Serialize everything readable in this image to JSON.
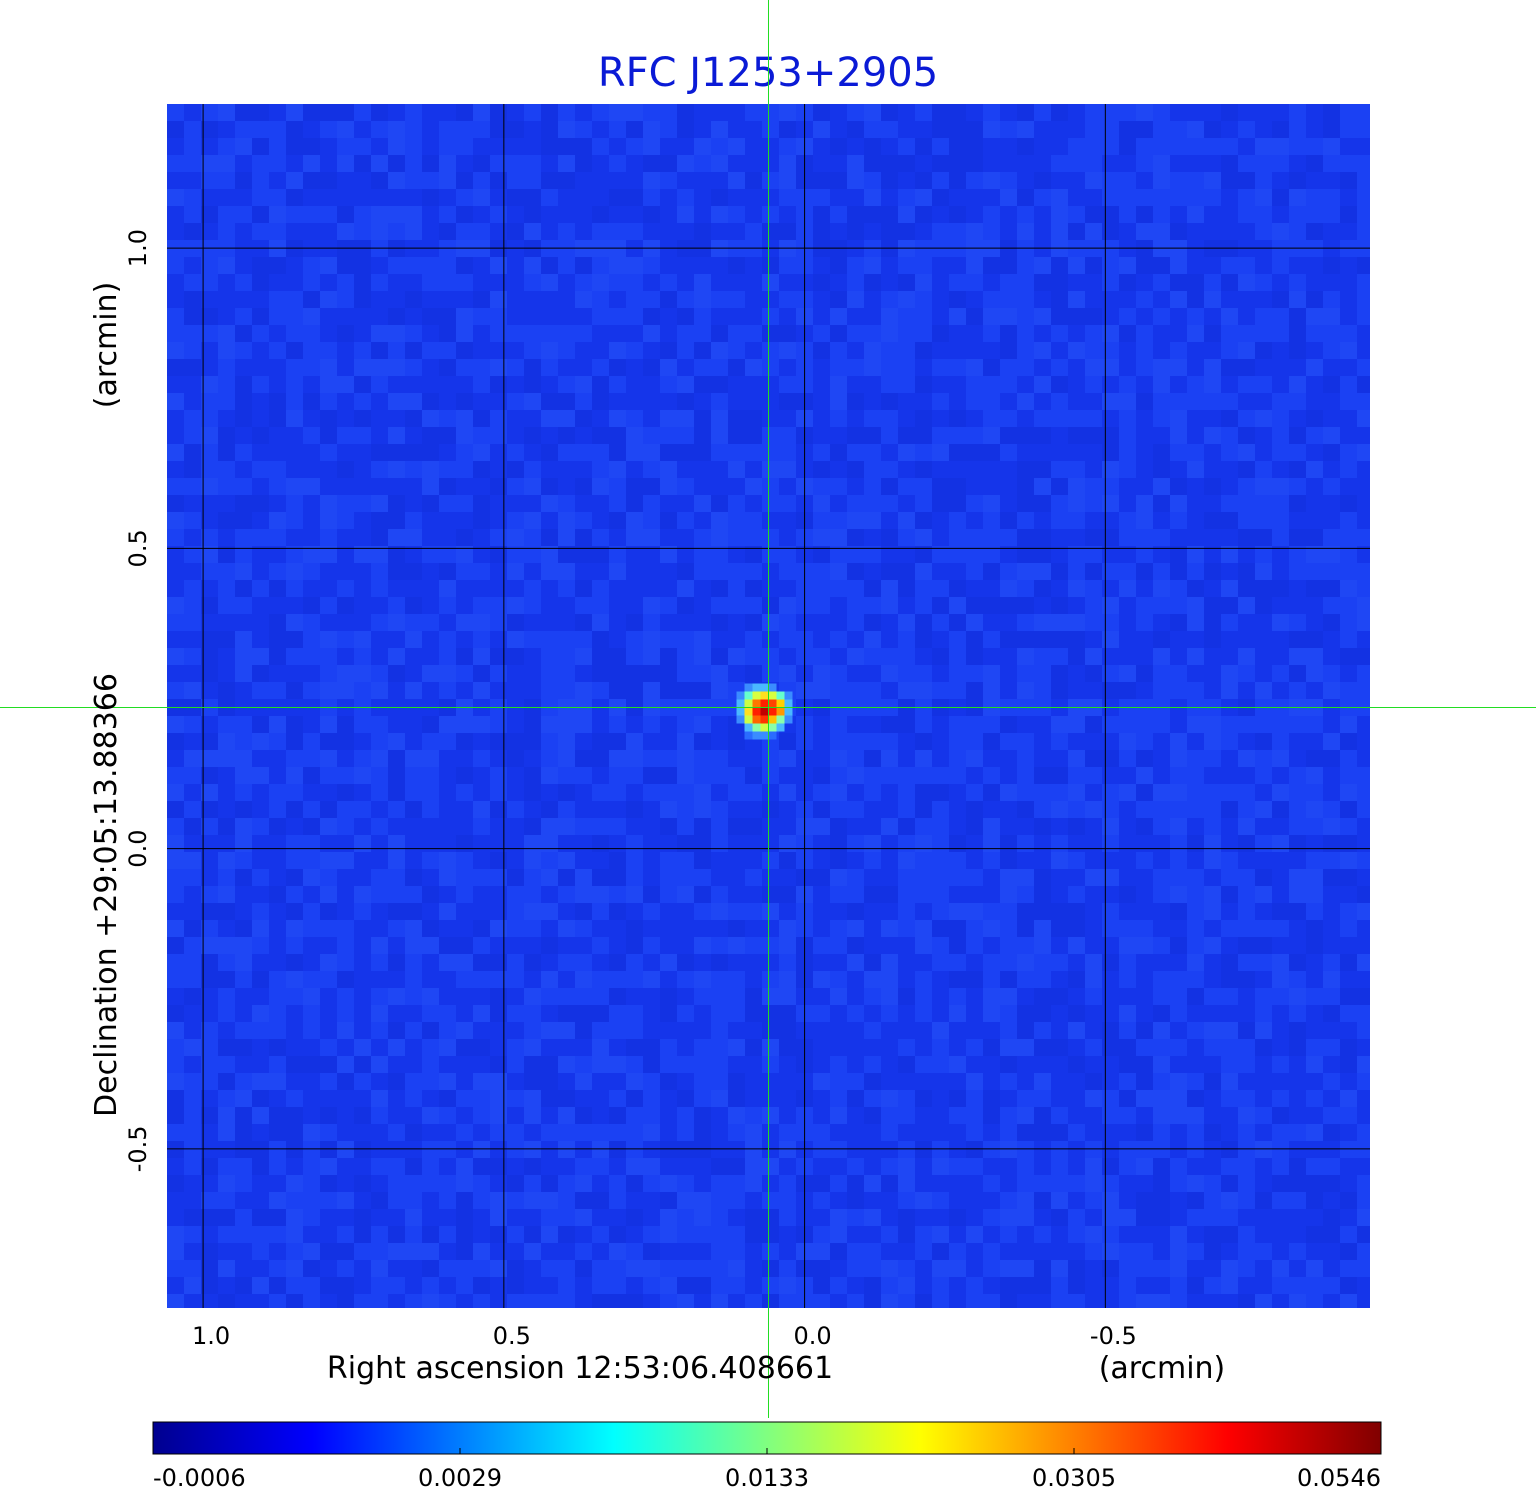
{
  "chart_data": {
    "type": "heatmap",
    "title": "RFC J1253+2905",
    "xlabel": "Right ascension  12:53:06.408661",
    "xunit": "(arcmin)",
    "ylabel": "Declination  +29:05:13.88366",
    "yunit": "(arcmin)",
    "x_ticks": [
      1.0,
      0.5,
      0.0,
      -0.5
    ],
    "x_tick_labels": [
      "1.0",
      "0.5",
      "0.0",
      "-0.5"
    ],
    "y_ticks": [
      1.0,
      0.5,
      0.0,
      -0.5
    ],
    "y_tick_labels": [
      "1.0",
      "0.5",
      "0.0",
      "-0.5"
    ],
    "xlim": [
      1.06,
      -0.94
    ],
    "ylim": [
      -0.765,
      1.24
    ],
    "grid": true,
    "source": {
      "x": 0.06,
      "y": 0.235,
      "peak": 0.0546
    },
    "crosshair": {
      "x": 0.06,
      "y": 0.235,
      "color": "#22dd22"
    },
    "colorbar": {
      "placement": "bottom",
      "tick_labels": [
        "-0.0006",
        "0.0029",
        "0.0133",
        "0.0305",
        "0.0546"
      ],
      "colormap": [
        "#00008f",
        "#0000ff",
        "#00ffff",
        "#ffff00",
        "#ff0000",
        "#800000"
      ]
    },
    "background_color": "#1a3cf0"
  }
}
